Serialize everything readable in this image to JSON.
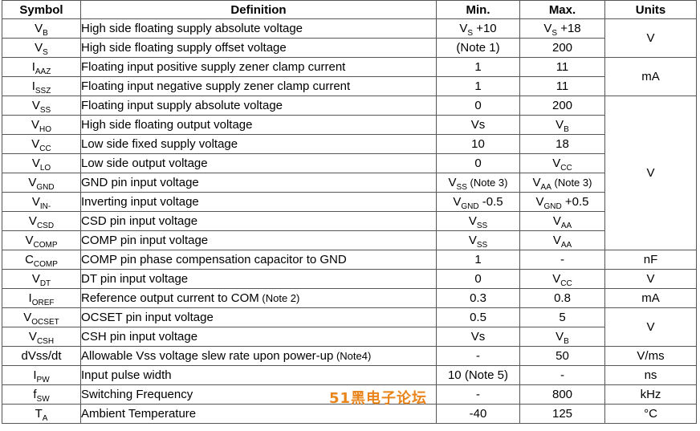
{
  "headers": {
    "symbol": "Symbol",
    "definition": "Definition",
    "min": "Min.",
    "max": "Max.",
    "units": "Units"
  },
  "rows": [
    {
      "sym": "V",
      "sub": "B",
      "def": "High side floating supply absolute voltage",
      "min": "V",
      "min_sub": "S",
      "min_rest": " +10",
      "max": "V",
      "max_sub": "S",
      "max_rest": " +18"
    },
    {
      "sym": "V",
      "sub": "S",
      "def": "High side floating supply offset voltage",
      "min": "(Note 1)",
      "max": "200"
    },
    {
      "sym": "I",
      "sub": "AAZ",
      "def": "Floating input positive supply zener clamp current",
      "min": "1",
      "max": "11"
    },
    {
      "sym": "I",
      "sub": "SSZ",
      "def": "Floating input negative supply zener clamp current",
      "min": "1",
      "max": "11"
    },
    {
      "sym": "V",
      "sub": "SS",
      "def": "Floating input supply absolute voltage",
      "min": "0",
      "max": "200"
    },
    {
      "sym": "V",
      "sub": "HO",
      "def": "High side floating output voltage",
      "min": "Vs",
      "max": "V",
      "max_sub": "B"
    },
    {
      "sym": "V",
      "sub": "CC",
      "def": "Low side fixed supply voltage",
      "min": "10",
      "max": "18"
    },
    {
      "sym": "V",
      "sub": "LO",
      "def": "Low side output voltage",
      "min": "0",
      "max": "V",
      "max_sub": "CC"
    },
    {
      "sym": "V",
      "sub": "GND",
      "def": "GND pin input voltage",
      "min": "V",
      "min_sub": "SS",
      "min_rest": " (Note 3)",
      "max": "V",
      "max_sub": "AA",
      "max_rest": " (Note 3)"
    },
    {
      "sym": "V",
      "sub": "IN-",
      "def": "Inverting input voltage",
      "min": "V",
      "min_sub": "GND",
      "min_rest": " -0.5",
      "max": "V",
      "max_sub": "GND",
      "max_rest": " +0.5"
    },
    {
      "sym": "V",
      "sub": "CSD",
      "def": "CSD pin input voltage",
      "min": "V",
      "min_sub": "SS",
      "max": "V",
      "max_sub": "AA"
    },
    {
      "sym": "V",
      "sub": "COMP",
      "def": "COMP pin input voltage",
      "min": "V",
      "min_sub": "SS",
      "max": "V",
      "max_sub": "AA"
    },
    {
      "sym": "C",
      "sub": "COMP",
      "def": "COMP pin phase compensation capacitor to GND",
      "min": "1",
      "max": "-"
    },
    {
      "sym": "V",
      "sub": "DT",
      "def": "DT pin input voltage",
      "min": "0",
      "max": "V",
      "max_sub": "CC"
    },
    {
      "sym": "I",
      "sub": "OREF",
      "def": "Reference output current to COM",
      "def_note": " (Note 2)",
      "min": "0.3",
      "max": "0.8"
    },
    {
      "sym": "V",
      "sub": "OCSET",
      "def": "OCSET pin input voltage",
      "min": "0.5",
      "max": "5"
    },
    {
      "sym": "V",
      "sub": "CSH",
      "def": "CSH pin input voltage",
      "min": "Vs",
      "max": "V",
      "max_sub": "B"
    },
    {
      "sym": "dVss/dt",
      "def": "Allowable Vss voltage slew rate upon power-up",
      "def_note": " (Note4)",
      "min": "-",
      "max": "50"
    },
    {
      "sym": "I",
      "sub": "PW",
      "def": "Input pulse width",
      "min": "10 (Note 5)",
      "max": "-"
    },
    {
      "sym": "f",
      "sub": "SW",
      "def": "Switching Frequency",
      "min": "-",
      "max": "800"
    },
    {
      "sym": "T",
      "sub": "A",
      "def": "Ambient Temperature",
      "min": "-40",
      "max": "125"
    }
  ],
  "units": [
    "V",
    "mA",
    "V",
    "nF",
    "V",
    "mA",
    "V",
    "V/ms",
    "ns",
    "kHz",
    "°C"
  ],
  "watermark": "51黑电子论坛"
}
